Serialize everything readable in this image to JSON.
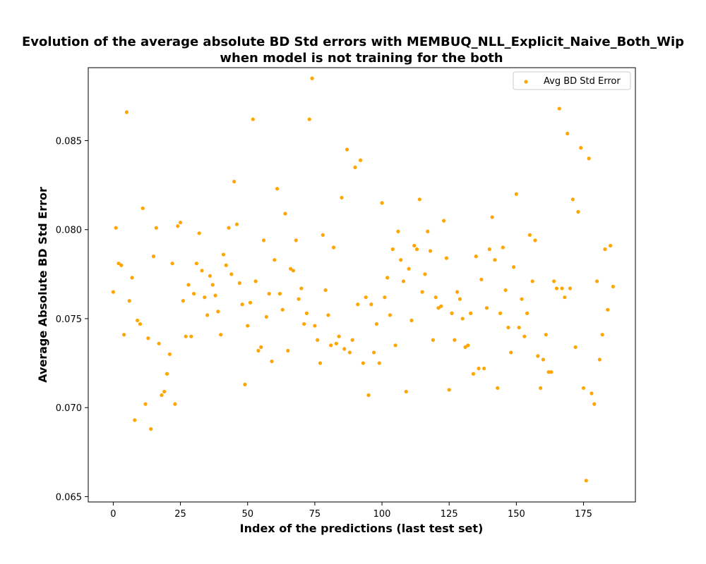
{
  "chart_data": {
    "type": "scatter",
    "title_line1": "Evolution of the average absolute BD Std errors with MEMBUQ_NLL_Explicit_Naive_Both_Wip",
    "title_line2": "when model is not training for the both",
    "xlabel": "Index of the predictions (last test set)",
    "ylabel": "Average Absolute BD Std Error",
    "xlim": [
      -9.3,
      194.3
    ],
    "ylim": [
      0.0647,
      0.0891
    ],
    "xticks": [
      0,
      25,
      50,
      75,
      100,
      125,
      150,
      175
    ],
    "yticks": [
      0.065,
      0.07,
      0.075,
      0.08,
      0.085
    ],
    "ytick_labels": [
      "0.065",
      "0.070",
      "0.075",
      "0.080",
      "0.085"
    ],
    "grid": false,
    "legend_position": "top-right",
    "series": [
      {
        "name": "Avg BD Std Error",
        "color": "#FFA500",
        "x": [
          0,
          1,
          2,
          3,
          4,
          5,
          6,
          7,
          8,
          9,
          10,
          11,
          12,
          13,
          14,
          15,
          16,
          17,
          18,
          19,
          20,
          21,
          22,
          23,
          24,
          25,
          26,
          27,
          28,
          29,
          30,
          31,
          32,
          33,
          34,
          35,
          36,
          37,
          38,
          39,
          40,
          41,
          42,
          43,
          44,
          45,
          46,
          47,
          48,
          49,
          50,
          51,
          52,
          53,
          54,
          55,
          56,
          57,
          58,
          59,
          60,
          61,
          62,
          63,
          64,
          65,
          66,
          67,
          68,
          69,
          70,
          71,
          72,
          73,
          74,
          75,
          76,
          77,
          78,
          79,
          80,
          81,
          82,
          83,
          84,
          85,
          86,
          87,
          88,
          89,
          90,
          91,
          92,
          93,
          94,
          95,
          96,
          97,
          98,
          99,
          100,
          101,
          102,
          103,
          104,
          105,
          106,
          107,
          108,
          109,
          110,
          111,
          112,
          113,
          114,
          115,
          116,
          117,
          118,
          119,
          120,
          121,
          122,
          123,
          124,
          125,
          126,
          127,
          128,
          129,
          130,
          131,
          132,
          133,
          134,
          135,
          136,
          137,
          138,
          139,
          140,
          141,
          142,
          143,
          144,
          145,
          146,
          147,
          148,
          149,
          150,
          151,
          152,
          153,
          154,
          155,
          156,
          157,
          158,
          159,
          160,
          161,
          162,
          163,
          164,
          165,
          166,
          167,
          168,
          169,
          170,
          171,
          172,
          173,
          174,
          175,
          176,
          177,
          178,
          179,
          180,
          181,
          182,
          183,
          184,
          185,
          186
        ],
        "y": [
          0.0765,
          0.0801,
          0.0781,
          0.078,
          0.0741,
          0.0866,
          0.076,
          0.0773,
          0.0693,
          0.0749,
          0.0747,
          0.0812,
          0.0702,
          0.0739,
          0.0688,
          0.0785,
          0.0801,
          0.0736,
          0.0707,
          0.0709,
          0.0719,
          0.073,
          0.0781,
          0.0702,
          0.0802,
          0.0804,
          0.076,
          0.074,
          0.0769,
          0.074,
          0.0764,
          0.0781,
          0.0798,
          0.0777,
          0.0762,
          0.0752,
          0.0774,
          0.0769,
          0.0763,
          0.0754,
          0.0741,
          0.0786,
          0.078,
          0.0801,
          0.0775,
          0.0827,
          0.0803,
          0.077,
          0.0758,
          0.0713,
          0.0746,
          0.0759,
          0.0862,
          0.0771,
          0.0732,
          0.0734,
          0.0794,
          0.0751,
          0.0764,
          0.0726,
          0.0783,
          0.0823,
          0.0764,
          0.0755,
          0.0809,
          0.0732,
          0.0778,
          0.0777,
          0.0794,
          0.0761,
          0.0767,
          0.0747,
          0.0753,
          0.0862,
          0.0885,
          0.0746,
          0.0738,
          0.0725,
          0.0797,
          0.0766,
          0.0752,
          0.0735,
          0.079,
          0.0736,
          0.074,
          0.0818,
          0.0733,
          0.0845,
          0.0731,
          0.0738,
          0.0835,
          0.0758,
          0.0839,
          0.0725,
          0.0762,
          0.0707,
          0.0758,
          0.0731,
          0.0747,
          0.0725,
          0.0815,
          0.0762,
          0.0773,
          0.0752,
          0.0789,
          0.0735,
          0.0799,
          0.0783,
          0.0771,
          0.0709,
          0.0778,
          0.0749,
          0.0791,
          0.0789,
          0.0817,
          0.0765,
          0.0775,
          0.0799,
          0.0788,
          0.0738,
          0.0762,
          0.0756,
          0.0757,
          0.0805,
          0.0784,
          0.071,
          0.0753,
          0.0738,
          0.0765,
          0.0761,
          0.075,
          0.0734,
          0.0735,
          0.0753,
          0.0719,
          0.0785,
          0.0722,
          0.0772,
          0.0722,
          0.0756,
          0.0789,
          0.0807,
          0.0783,
          0.0711,
          0.0753,
          0.079,
          0.0766,
          0.0745,
          0.0731,
          0.0779,
          0.082,
          0.0745,
          0.0761,
          0.074,
          0.0753,
          0.0797,
          0.0771,
          0.0794,
          0.0729,
          0.0711,
          0.0727,
          0.0741,
          0.072,
          0.072,
          0.0771,
          0.0767,
          0.0868,
          0.0767,
          0.0762,
          0.0854,
          0.0767,
          0.0817,
          0.0734,
          0.081,
          0.0846,
          0.0711,
          0.0659,
          0.084,
          0.0708,
          0.0702,
          0.0771,
          0.0727,
          0.0741,
          0.0789,
          0.0755,
          0.0791,
          0.0768
        ]
      }
    ]
  }
}
